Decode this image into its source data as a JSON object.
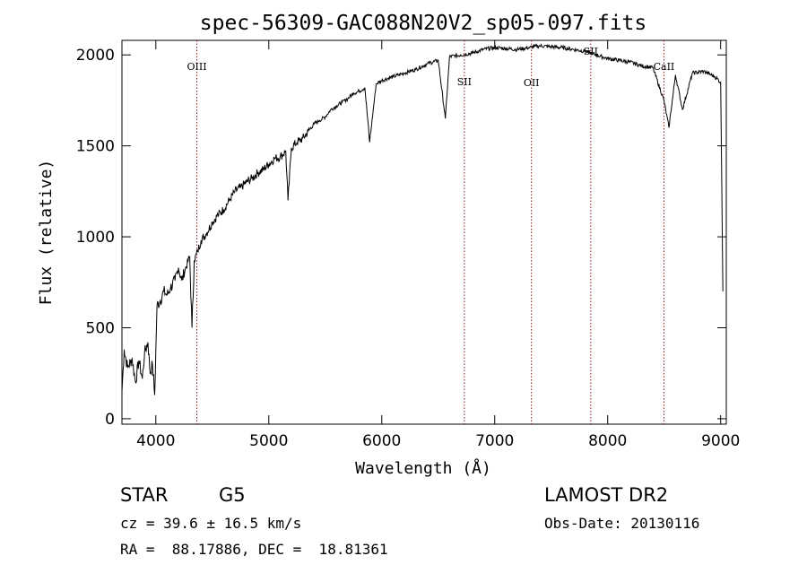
{
  "chart_data": {
    "type": "line",
    "title": "spec-56309-GAC088N20V2_sp05-097.fits",
    "xlabel": "Wavelength (Å)",
    "ylabel": "Flux (relative)",
    "xlim": [
      3700,
      9050
    ],
    "ylim": [
      -30,
      2080
    ],
    "x_ticks": [
      4000,
      5000,
      6000,
      7000,
      8000,
      9000
    ],
    "y_ticks": [
      0,
      500,
      1000,
      1500,
      2000
    ],
    "line_color": "#000000",
    "marker_color": "#8b1a1a",
    "spectral_lines": [
      {
        "label": "OIII",
        "wavelength": 4363
      },
      {
        "label": "SII",
        "wavelength": 6731
      },
      {
        "label": "OII",
        "wavelength": 7325
      },
      {
        "label": "SII",
        "wavelength": 7850
      },
      {
        "label": "CaII",
        "wavelength": 8498
      }
    ],
    "series": [
      {
        "name": "flux",
        "x": [
          3700,
          3720,
          3750,
          3790,
          3820,
          3850,
          3880,
          3900,
          3930,
          3950,
          3970,
          3990,
          4010,
          4040,
          4070,
          4100,
          4130,
          4170,
          4200,
          4230,
          4260,
          4300,
          4320,
          4340,
          4370,
          4400,
          4450,
          4500,
          4550,
          4600,
          4650,
          4700,
          4750,
          4800,
          4850,
          4900,
          4950,
          5000,
          5050,
          5100,
          5150,
          5170,
          5200,
          5250,
          5300,
          5350,
          5400,
          5450,
          5500,
          5550,
          5600,
          5650,
          5700,
          5750,
          5800,
          5850,
          5893,
          5950,
          6000,
          6100,
          6200,
          6300,
          6400,
          6500,
          6563,
          6600,
          6700,
          6800,
          6900,
          7000,
          7100,
          7200,
          7300,
          7400,
          7500,
          7600,
          7700,
          7800,
          7900,
          8000,
          8100,
          8200,
          8300,
          8400,
          8498,
          8542,
          8600,
          8662,
          8750,
          8850,
          8950,
          9000,
          9020
        ],
        "y": [
          150,
          380,
          280,
          330,
          200,
          320,
          220,
          360,
          420,
          250,
          300,
          130,
          620,
          650,
          700,
          680,
          720,
          760,
          830,
          760,
          820,
          890,
          500,
          870,
          920,
          980,
          1020,
          1080,
          1120,
          1150,
          1200,
          1250,
          1270,
          1300,
          1320,
          1350,
          1370,
          1400,
          1430,
          1440,
          1470,
          1200,
          1490,
          1520,
          1540,
          1580,
          1620,
          1640,
          1660,
          1700,
          1720,
          1740,
          1760,
          1790,
          1800,
          1820,
          1520,
          1840,
          1860,
          1880,
          1900,
          1920,
          1950,
          1970,
          1650,
          1990,
          2000,
          2010,
          2030,
          2040,
          2035,
          2030,
          2040,
          2050,
          2045,
          2040,
          2030,
          2020,
          2000,
          1980,
          1970,
          1960,
          1940,
          1930,
          1750,
          1600,
          1890,
          1700,
          1900,
          1910,
          1880,
          1850,
          700
        ]
      }
    ]
  },
  "info": {
    "object_type": "STAR",
    "subclass": "G5",
    "survey": "LAMOST DR2",
    "cz": "cz = 39.6 ± 16.5 km/s",
    "obs_date": "Obs-Date: 20130116",
    "coords": "RA =  88.17886, DEC =  18.81361"
  }
}
